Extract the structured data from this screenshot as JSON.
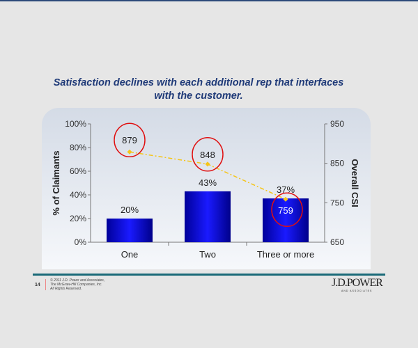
{
  "title_line1": "Satisfaction declines with each additional rep that interfaces",
  "title_line2": "with the customer.",
  "chart_data": {
    "type": "bar",
    "categories": [
      "One",
      "Two",
      "Three or more"
    ],
    "series": [
      {
        "name": "% of Claimants",
        "axis": "left",
        "type": "bar",
        "values": [
          20,
          43,
          37
        ],
        "labels": [
          "20%",
          "43%",
          "37%"
        ],
        "color": "#0a0acc"
      },
      {
        "name": "Overall CSI",
        "axis": "right",
        "type": "line",
        "values": [
          879,
          848,
          759
        ],
        "labels": [
          "879",
          "848",
          "759"
        ],
        "color": "#f5c518"
      }
    ],
    "ylabel": "% of Claimants",
    "y2label": "Overall CSI",
    "ylim": [
      0,
      100
    ],
    "y2lim": [
      650,
      950
    ],
    "yticks": [
      "0%",
      "20%",
      "40%",
      "60%",
      "80%",
      "100%"
    ],
    "y2ticks": [
      "650",
      "750",
      "850",
      "950"
    ],
    "annotation": "red circles around CSI values"
  },
  "footer": {
    "page": "14",
    "copyright": [
      "© 2011 J.D. Power and Associates,",
      "The McGraw-Hill Companies, Inc.",
      "All Rights Reserved."
    ],
    "logo": "J.D.POWER",
    "logo_sub": "AND ASSOCIATES"
  }
}
